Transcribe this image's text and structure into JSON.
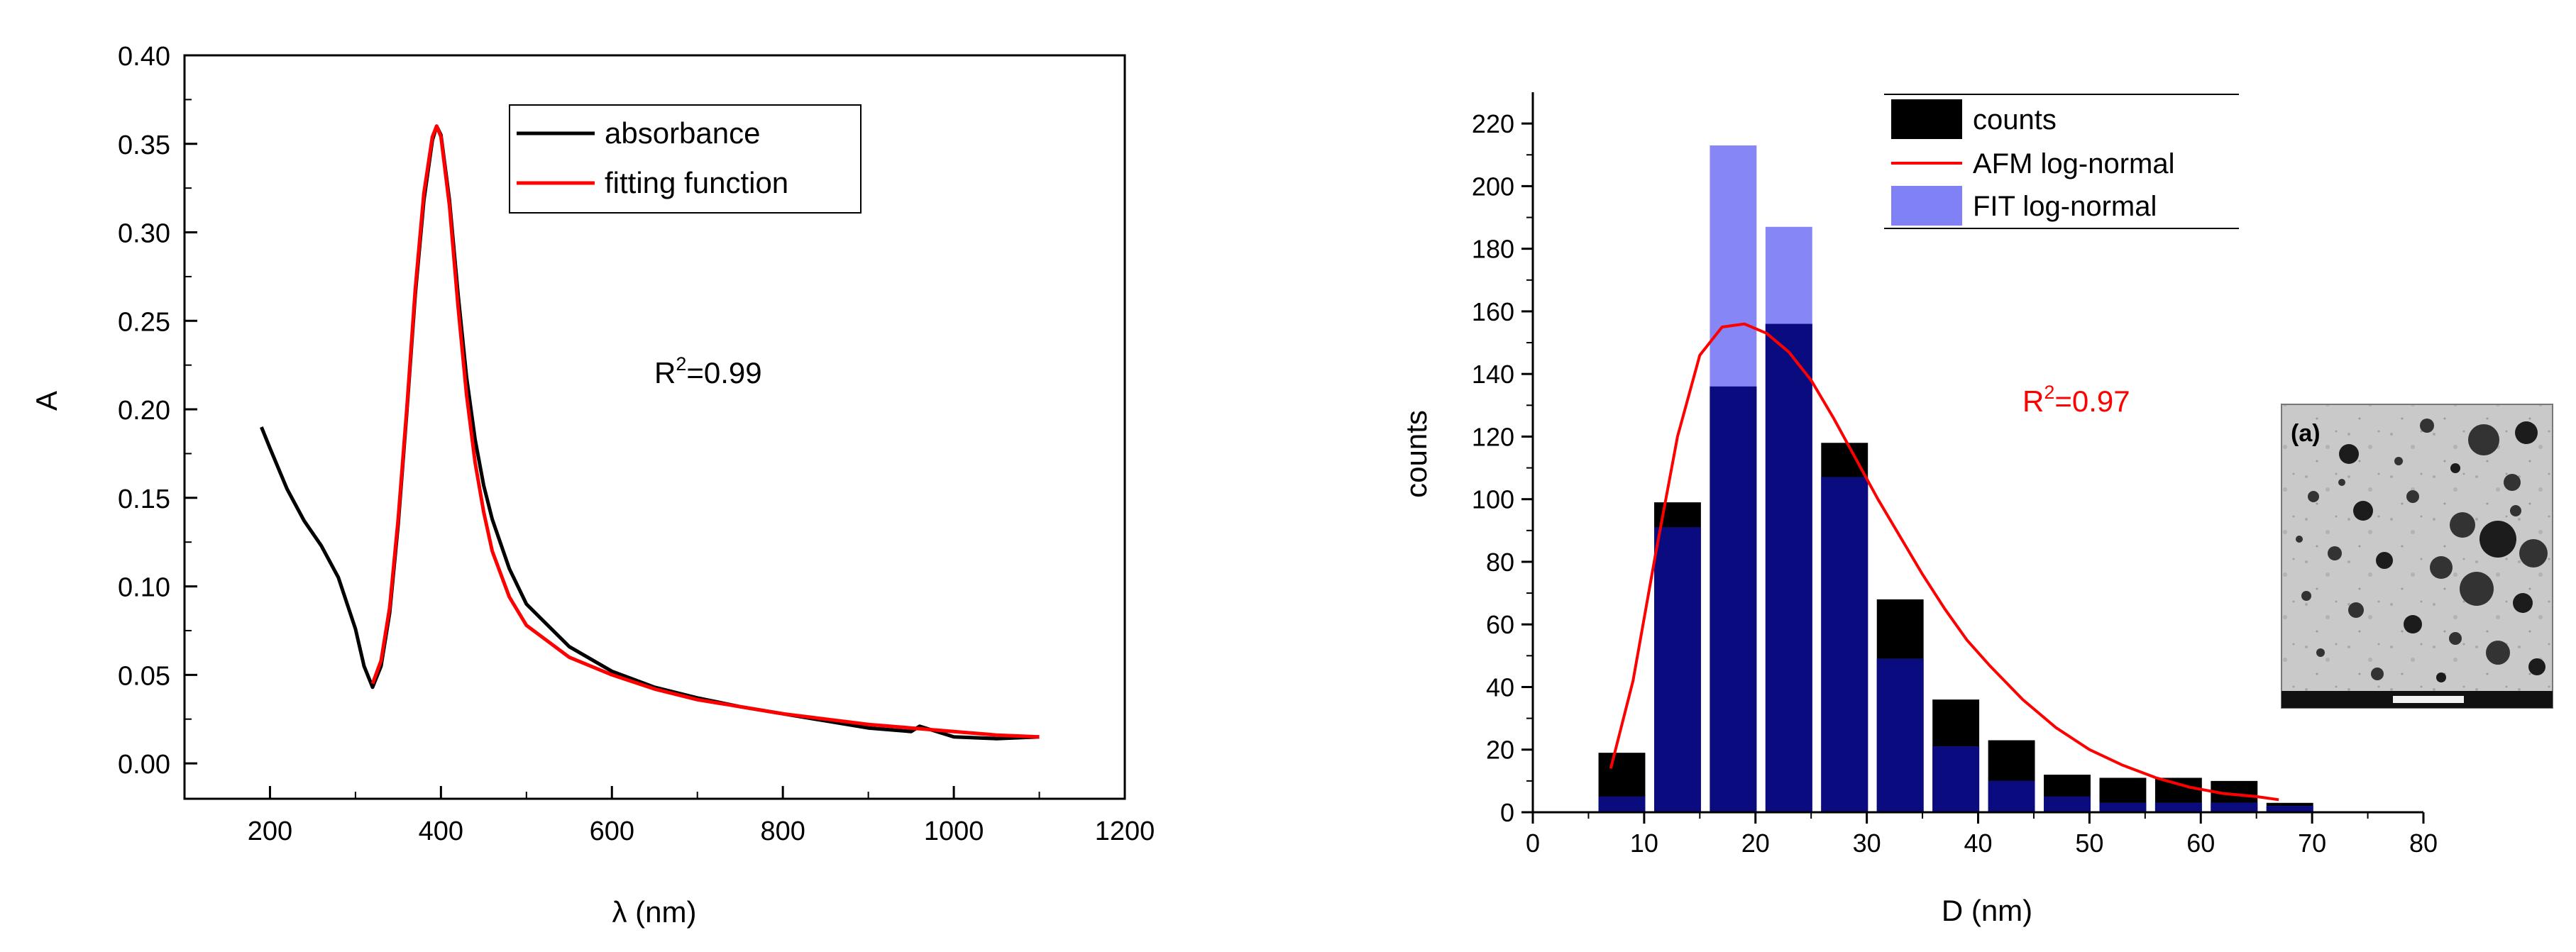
{
  "chart_data": [
    {
      "type": "line",
      "xlabel": "λ (nm)",
      "ylabel": "A",
      "xlim": [
        100,
        1200
      ],
      "ylim": [
        -0.02,
        0.4
      ],
      "xticks": [
        "200",
        "400",
        "600",
        "800",
        "1000",
        "1200"
      ],
      "yticks": [
        "0.00",
        "0.05",
        "0.10",
        "0.15",
        "0.20",
        "0.25",
        "0.30",
        "0.35",
        "0.40"
      ],
      "annotation": {
        "base": "R",
        "sup": "2",
        "rest": "=0.99"
      },
      "legend_position": "top-right",
      "series": [
        {
          "name": "absorbance",
          "color": "#000000",
          "x": [
            190,
            200,
            220,
            240,
            260,
            280,
            300,
            310,
            320,
            330,
            340,
            350,
            360,
            370,
            380,
            390,
            395,
            400,
            410,
            420,
            430,
            440,
            450,
            460,
            480,
            500,
            550,
            600,
            650,
            700,
            750,
            800,
            850,
            900,
            950,
            960,
            1000,
            1050,
            1100
          ],
          "y": [
            0.19,
            0.178,
            0.155,
            0.137,
            0.123,
            0.105,
            0.076,
            0.055,
            0.043,
            0.055,
            0.085,
            0.135,
            0.198,
            0.265,
            0.318,
            0.352,
            0.36,
            0.355,
            0.318,
            0.265,
            0.218,
            0.183,
            0.157,
            0.138,
            0.11,
            0.09,
            0.066,
            0.052,
            0.043,
            0.037,
            0.032,
            0.028,
            0.024,
            0.02,
            0.018,
            0.021,
            0.015,
            0.014,
            0.015
          ]
        },
        {
          "name": "fitting function",
          "color": "#ff0000",
          "x": [
            320,
            330,
            340,
            350,
            360,
            370,
            380,
            390,
            395,
            400,
            410,
            420,
            430,
            440,
            450,
            460,
            480,
            500,
            550,
            600,
            650,
            700,
            750,
            800,
            850,
            900,
            950,
            1000,
            1050,
            1100
          ],
          "y": [
            0.045,
            0.058,
            0.088,
            0.138,
            0.2,
            0.268,
            0.322,
            0.354,
            0.36,
            0.354,
            0.315,
            0.258,
            0.208,
            0.17,
            0.142,
            0.12,
            0.094,
            0.078,
            0.06,
            0.05,
            0.042,
            0.036,
            0.032,
            0.028,
            0.025,
            0.022,
            0.02,
            0.018,
            0.016,
            0.015
          ]
        }
      ]
    },
    {
      "type": "bar",
      "xlabel": "D (nm)",
      "ylabel": "counts",
      "xlim": [
        0,
        80
      ],
      "ylim": [
        0,
        230
      ],
      "xticks": [
        "0",
        "10",
        "20",
        "30",
        "40",
        "50",
        "60",
        "70",
        "80"
      ],
      "yticks": [
        "0",
        "20",
        "40",
        "60",
        "80",
        "100",
        "120",
        "140",
        "160",
        "180",
        "200",
        "220"
      ],
      "annotation": {
        "base": "R",
        "sup": "2",
        "rest": "=0.97"
      },
      "legend_position": "top-right",
      "inset_label": "(a)",
      "bar_centers": [
        8,
        13,
        18,
        23,
        28,
        33,
        38,
        43,
        48,
        53,
        58,
        63,
        68
      ],
      "bar_width": 4.2,
      "series": [
        {
          "name": "counts",
          "kind": "bar",
          "color": "#000000",
          "values": [
            19,
            99,
            136,
            156,
            118,
            68,
            36,
            23,
            12,
            11,
            11,
            10,
            3
          ]
        },
        {
          "name": "AFM log-normal",
          "kind": "line",
          "color": "#ff0000",
          "x": [
            7,
            9,
            11,
            13,
            15,
            17,
            19,
            21,
            23,
            25,
            27,
            29,
            31,
            33,
            35,
            37,
            39,
            41,
            44,
            47,
            50,
            53,
            56,
            59,
            62,
            65,
            67
          ],
          "y": [
            14,
            42,
            82,
            120,
            146,
            155,
            156,
            153,
            147,
            138,
            126,
            113,
            100,
            88,
            76,
            65,
            55,
            47,
            36,
            27,
            20,
            15,
            11,
            8,
            6,
            5,
            4
          ]
        },
        {
          "name": "FIT log-normal",
          "kind": "bar",
          "color": "#6b6bf5",
          "values": [
            5,
            91,
            213,
            187,
            107,
            49,
            21,
            10,
            5,
            3,
            3,
            3,
            2
          ]
        }
      ]
    }
  ]
}
